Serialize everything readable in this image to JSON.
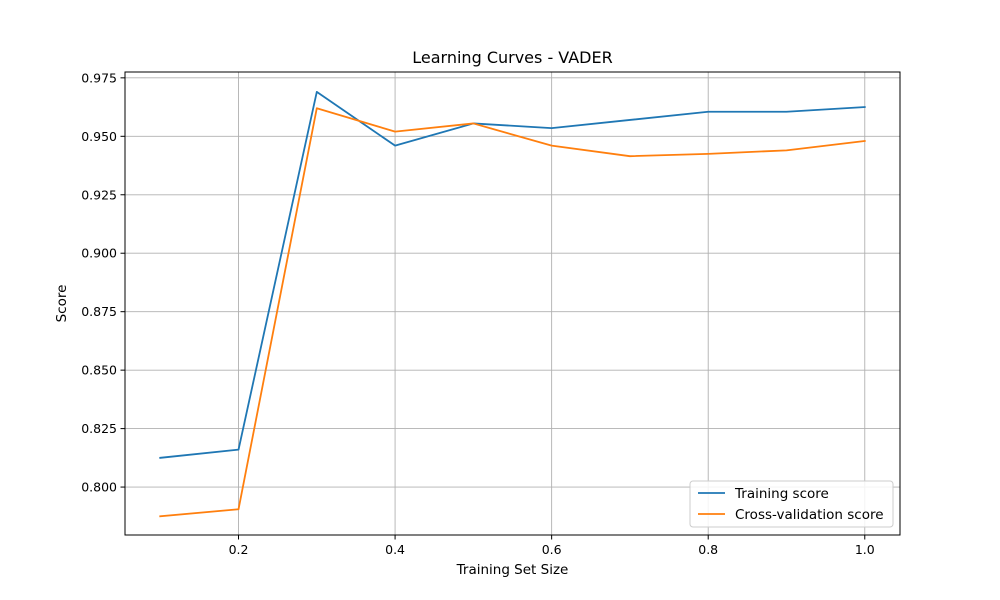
{
  "chart_data": {
    "type": "line",
    "title": "Learning Curves - VADER",
    "xlabel": "Training Set Size",
    "ylabel": "Score",
    "xlim": [
      0.055,
      1.045
    ],
    "ylim": [
      0.7795,
      0.9775
    ],
    "x_ticks": [
      0.2,
      0.4,
      0.6,
      0.8,
      1.0
    ],
    "x_tick_labels": [
      "0.2",
      "0.4",
      "0.6",
      "0.8",
      "1.0"
    ],
    "y_ticks": [
      0.8,
      0.825,
      0.85,
      0.875,
      0.9,
      0.925,
      0.95,
      0.975
    ],
    "y_tick_labels": [
      "0.800",
      "0.825",
      "0.850",
      "0.875",
      "0.900",
      "0.925",
      "0.950",
      "0.975"
    ],
    "grid": true,
    "legend_position": "bottom-right",
    "x": [
      0.1,
      0.2,
      0.3,
      0.4,
      0.5,
      0.6,
      0.7,
      0.8,
      0.9,
      1.0
    ],
    "series": [
      {
        "name": "Training score",
        "color": "#1f77b4",
        "values": [
          0.8125,
          0.816,
          0.969,
          0.946,
          0.9555,
          0.9535,
          0.957,
          0.9605,
          0.9605,
          0.9625
        ]
      },
      {
        "name": "Cross-validation score",
        "color": "#ff7f0e",
        "values": [
          0.7875,
          0.7905,
          0.962,
          0.952,
          0.9555,
          0.946,
          0.9415,
          0.9425,
          0.944,
          0.948
        ]
      }
    ]
  }
}
